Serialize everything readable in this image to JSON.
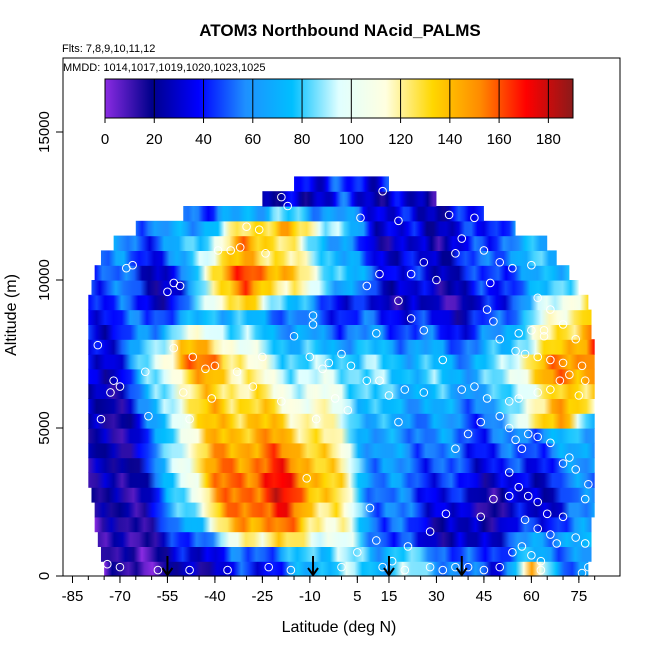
{
  "chart_data": {
    "type": "heatmap",
    "title": "ATOM3 Northbound NAcid_PALMS",
    "flights_label": "Flts: 7,8,9,10,11,12",
    "dates_label": "MMDD: 1014,1017,1019,1020,1023,1025",
    "xlabel": "Latitude (deg N)",
    "ylabel": "Altitude (m)",
    "xlim": [
      -88,
      88
    ],
    "ylim": [
      0,
      17500
    ],
    "x_ticks": [
      -85,
      -70,
      -55,
      -40,
      -25,
      -10,
      5,
      15,
      30,
      45,
      60,
      75
    ],
    "y_ticks": [
      0,
      5000,
      10000,
      15000
    ],
    "colorbar": {
      "min": 0,
      "max": 190,
      "ticks": [
        0,
        20,
        40,
        60,
        80,
        100,
        120,
        140,
        160,
        180
      ],
      "colors": [
        "#8a2be2",
        "#00008b",
        "#0000ff",
        "#1e90ff",
        "#00bfff",
        "#e0ffff",
        "#ffffe0",
        "#ffd700",
        "#ff8c00",
        "#ff0000",
        "#8b1a1a"
      ]
    },
    "grid": false,
    "profile_markers_lat": [
      -55,
      -9,
      15,
      38
    ],
    "profile_marker_color": "#000000",
    "observation_point_color": "#ffffff",
    "altitude_bins_m": [
      0,
      500,
      1000,
      1500,
      2000,
      2500,
      3000,
      3500,
      4000,
      4500,
      5000,
      5500,
      6000,
      6500,
      7000,
      7500,
      8000,
      8500,
      9000,
      9500,
      10000,
      10500,
      11000,
      11500,
      12000,
      12500,
      13000
    ],
    "bin_height_m": 500,
    "lat_extent": [
      [
        -75,
        78
      ],
      [
        -76,
        79
      ],
      [
        -77,
        79
      ],
      [
        -78,
        79
      ],
      [
        -78,
        80
      ],
      [
        -79,
        80
      ],
      [
        -80,
        80
      ],
      [
        -80,
        80
      ],
      [
        -80,
        80
      ],
      [
        -80,
        80
      ],
      [
        -80,
        80
      ],
      [
        -80,
        80
      ],
      [
        -80,
        80
      ],
      [
        -80,
        80
      ],
      [
        -80,
        80
      ],
      [
        -80,
        80
      ],
      [
        -80,
        79
      ],
      [
        -80,
        79
      ],
      [
        -80,
        78
      ],
      [
        -79,
        75
      ],
      [
        -78,
        72
      ],
      [
        -76,
        68
      ],
      [
        -72,
        65
      ],
      [
        -65,
        55
      ],
      [
        -50,
        45
      ],
      [
        -25,
        30
      ],
      [
        -15,
        15
      ]
    ],
    "profile_lats": [
      -80,
      -70,
      -60,
      -50,
      -40,
      -30,
      -20,
      -10,
      0,
      10,
      20,
      30,
      40,
      50,
      60,
      70,
      80
    ],
    "values": [
      [
        6,
        8,
        10,
        20,
        30,
        40,
        45,
        70,
        90,
        70,
        90,
        70,
        50,
        40,
        130,
        60,
        50
      ],
      [
        8,
        10,
        15,
        30,
        40,
        50,
        60,
        80,
        90,
        70,
        80,
        60,
        40,
        50,
        70,
        60,
        55
      ],
      [
        10,
        12,
        20,
        40,
        70,
        120,
        130,
        110,
        100,
        60,
        40,
        30,
        20,
        40,
        60,
        70,
        60
      ],
      [
        10,
        12,
        25,
        60,
        110,
        150,
        155,
        130,
        110,
        60,
        45,
        30,
        20,
        30,
        40,
        50,
        60
      ],
      [
        12,
        15,
        30,
        80,
        130,
        160,
        165,
        140,
        115,
        60,
        50,
        40,
        20,
        20,
        30,
        40,
        60
      ],
      [
        12,
        15,
        30,
        90,
        140,
        160,
        170,
        150,
        120,
        55,
        50,
        40,
        30,
        20,
        30,
        40,
        60
      ],
      [
        14,
        18,
        35,
        100,
        145,
        160,
        168,
        150,
        120,
        60,
        55,
        45,
        35,
        30,
        30,
        50,
        60
      ],
      [
        15,
        20,
        40,
        110,
        145,
        155,
        160,
        145,
        115,
        60,
        55,
        50,
        40,
        40,
        40,
        50,
        65
      ],
      [
        15,
        20,
        45,
        110,
        140,
        150,
        150,
        140,
        110,
        60,
        60,
        55,
        45,
        45,
        50,
        60,
        70
      ],
      [
        15,
        20,
        45,
        110,
        135,
        145,
        140,
        130,
        105,
        60,
        60,
        60,
        50,
        50,
        60,
        70,
        70
      ],
      [
        15,
        20,
        50,
        115,
        135,
        140,
        130,
        120,
        100,
        65,
        65,
        60,
        55,
        50,
        130,
        140,
        70
      ],
      [
        18,
        25,
        60,
        120,
        135,
        135,
        120,
        110,
        100,
        70,
        70,
        65,
        60,
        60,
        120,
        140,
        130
      ],
      [
        20,
        30,
        70,
        120,
        130,
        125,
        110,
        100,
        100,
        75,
        75,
        70,
        65,
        70,
        110,
        130,
        140
      ],
      [
        25,
        35,
        80,
        130,
        140,
        120,
        100,
        90,
        95,
        80,
        80,
        75,
        70,
        80,
        130,
        150,
        150
      ],
      [
        30,
        40,
        90,
        150,
        150,
        115,
        90,
        80,
        85,
        80,
        75,
        70,
        65,
        80,
        130,
        150,
        160
      ],
      [
        35,
        45,
        80,
        140,
        130,
        100,
        80,
        70,
        70,
        70,
        65,
        60,
        55,
        70,
        100,
        140,
        160
      ],
      [
        35,
        40,
        60,
        100,
        100,
        80,
        70,
        60,
        55,
        55,
        50,
        45,
        40,
        60,
        100,
        130,
        150
      ],
      [
        40,
        45,
        50,
        60,
        80,
        70,
        60,
        50,
        45,
        45,
        40,
        35,
        30,
        50,
        80,
        120,
        140
      ],
      [
        45,
        50,
        30,
        40,
        120,
        130,
        90,
        60,
        40,
        30,
        25,
        20,
        20,
        40,
        70,
        110,
        130
      ],
      [
        50,
        55,
        30,
        30,
        130,
        150,
        130,
        100,
        70,
        40,
        30,
        25,
        30,
        45,
        60,
        90,
        110
      ],
      [
        55,
        50,
        30,
        40,
        140,
        160,
        150,
        110,
        80,
        50,
        35,
        30,
        35,
        50,
        60,
        80,
        100
      ],
      [
        60,
        55,
        40,
        60,
        120,
        140,
        130,
        100,
        70,
        40,
        30,
        30,
        40,
        60,
        70,
        80,
        90
      ],
      [
        60,
        55,
        50,
        70,
        100,
        150,
        130,
        90,
        60,
        30,
        25,
        25,
        35,
        55,
        65,
        75,
        80
      ],
      [
        60,
        60,
        60,
        60,
        80,
        130,
        140,
        120,
        80,
        40,
        30,
        30,
        35,
        50,
        60,
        65,
        70
      ],
      [
        60,
        60,
        60,
        60,
        50,
        70,
        80,
        70,
        60,
        40,
        30,
        30,
        35,
        45,
        55,
        60,
        65
      ],
      [
        60,
        60,
        60,
        50,
        40,
        30,
        20,
        30,
        40,
        30,
        25,
        25,
        30,
        40,
        50,
        55,
        60
      ],
      [
        60,
        60,
        60,
        60,
        50,
        40,
        50,
        40,
        40,
        40,
        40,
        40,
        40,
        50,
        60,
        60,
        60
      ]
    ],
    "observations": [
      [
        -77,
        7800
      ],
      [
        -72,
        6600
      ],
      [
        -70,
        6400
      ],
      [
        -73,
        6200
      ],
      [
        -76,
        5300
      ],
      [
        -74,
        400
      ],
      [
        -70,
        300
      ],
      [
        -66,
        10500
      ],
      [
        -68,
        10400
      ],
      [
        -62,
        6900
      ],
      [
        -61,
        5400
      ],
      [
        -55,
        9600
      ],
      [
        -53,
        9900
      ],
      [
        -51,
        9800
      ],
      [
        -53,
        7700
      ],
      [
        -47,
        7400
      ],
      [
        -43,
        7000
      ],
      [
        -40,
        7100
      ],
      [
        -50,
        6200
      ],
      [
        -48,
        5300
      ],
      [
        -41,
        6000
      ],
      [
        -39,
        11000
      ],
      [
        -35,
        11000
      ],
      [
        -32,
        11100
      ],
      [
        -30,
        11800
      ],
      [
        -26,
        11700
      ],
      [
        -24,
        10900
      ],
      [
        -17,
        12500
      ],
      [
        -19,
        12800
      ],
      [
        -9,
        8800
      ],
      [
        -9,
        8500
      ],
      [
        -15,
        8100
      ],
      [
        -10,
        7400
      ],
      [
        -6,
        7000
      ],
      [
        -4,
        7200
      ],
      [
        0,
        7500
      ],
      [
        3,
        7100
      ],
      [
        -25,
        7400
      ],
      [
        -33,
        6900
      ],
      [
        -28,
        6400
      ],
      [
        -19,
        5900
      ],
      [
        -2,
        6000
      ],
      [
        -8,
        5300
      ],
      [
        6,
        12100
      ],
      [
        2,
        5600
      ],
      [
        -11,
        3300
      ],
      [
        5,
        800
      ],
      [
        0,
        300
      ],
      [
        -16,
        200
      ],
      [
        -23,
        300
      ],
      [
        -36,
        200
      ],
      [
        -48,
        200
      ],
      [
        -58,
        200
      ],
      [
        13,
        13000
      ],
      [
        18,
        12000
      ],
      [
        22,
        10200
      ],
      [
        26,
        10600
      ],
      [
        30,
        10000
      ],
      [
        34,
        12200
      ],
      [
        36,
        10900
      ],
      [
        38,
        11400
      ],
      [
        42,
        12100
      ],
      [
        45,
        11000
      ],
      [
        47,
        9900
      ],
      [
        50,
        10600
      ],
      [
        54,
        10400
      ],
      [
        58,
        12000
      ],
      [
        60,
        10500
      ],
      [
        62,
        9400
      ],
      [
        64,
        8300
      ],
      [
        66,
        9000
      ],
      [
        56,
        8200
      ],
      [
        58,
        7500
      ],
      [
        62,
        7400
      ],
      [
        66,
        7300
      ],
      [
        70,
        7200
      ],
      [
        76,
        7100
      ],
      [
        62,
        6200
      ],
      [
        66,
        6300
      ],
      [
        69,
        6600
      ],
      [
        72,
        6800
      ],
      [
        75,
        6100
      ],
      [
        56,
        6000
      ],
      [
        53,
        5900
      ],
      [
        50,
        5400
      ],
      [
        46,
        6000
      ],
      [
        42,
        6400
      ],
      [
        38,
        6300
      ],
      [
        32,
        7300
      ],
      [
        26,
        6200
      ],
      [
        20,
        6300
      ],
      [
        15,
        6100
      ],
      [
        12,
        6600
      ],
      [
        8,
        6600
      ],
      [
        11,
        8200
      ],
      [
        8,
        9800
      ],
      [
        12,
        10200
      ],
      [
        18,
        9300
      ],
      [
        22,
        8700
      ],
      [
        26,
        8300
      ],
      [
        48,
        8600
      ],
      [
        46,
        9000
      ],
      [
        50,
        8000
      ],
      [
        55,
        7600
      ],
      [
        60,
        8300
      ],
      [
        64,
        8100
      ],
      [
        70,
        8500
      ],
      [
        74,
        8000
      ],
      [
        77,
        6600
      ],
      [
        53,
        5000
      ],
      [
        55,
        4600
      ],
      [
        57,
        4300
      ],
      [
        59,
        4800
      ],
      [
        62,
        4700
      ],
      [
        66,
        4500
      ],
      [
        70,
        3800
      ],
      [
        74,
        3600
      ],
      [
        77,
        2600
      ],
      [
        78,
        3100
      ],
      [
        72,
        4000
      ],
      [
        44,
        5200
      ],
      [
        40,
        4800
      ],
      [
        36,
        4300
      ],
      [
        53,
        3500
      ],
      [
        56,
        3000
      ],
      [
        59,
        2700
      ],
      [
        62,
        2500
      ],
      [
        65,
        2100
      ],
      [
        70,
        2000
      ],
      [
        74,
        1300
      ],
      [
        77,
        1100
      ],
      [
        53,
        2700
      ],
      [
        58,
        1900
      ],
      [
        62,
        1600
      ],
      [
        66,
        1400
      ],
      [
        68,
        1100
      ],
      [
        57,
        1000
      ],
      [
        54,
        800
      ],
      [
        60,
        700
      ],
      [
        63,
        500
      ],
      [
        50,
        300
      ],
      [
        45,
        200
      ],
      [
        40,
        300
      ],
      [
        36,
        300
      ],
      [
        32,
        200
      ],
      [
        28,
        300
      ],
      [
        20,
        200
      ],
      [
        13,
        300
      ],
      [
        11,
        1200
      ],
      [
        16,
        500
      ],
      [
        9,
        2300
      ],
      [
        18,
        5200
      ],
      [
        21,
        1000
      ],
      [
        28,
        1500
      ],
      [
        33,
        2100
      ],
      [
        44,
        2000
      ],
      [
        48,
        2600
      ],
      [
        78,
        300
      ],
      [
        76,
        100
      ],
      [
        63,
        200
      ]
    ]
  }
}
